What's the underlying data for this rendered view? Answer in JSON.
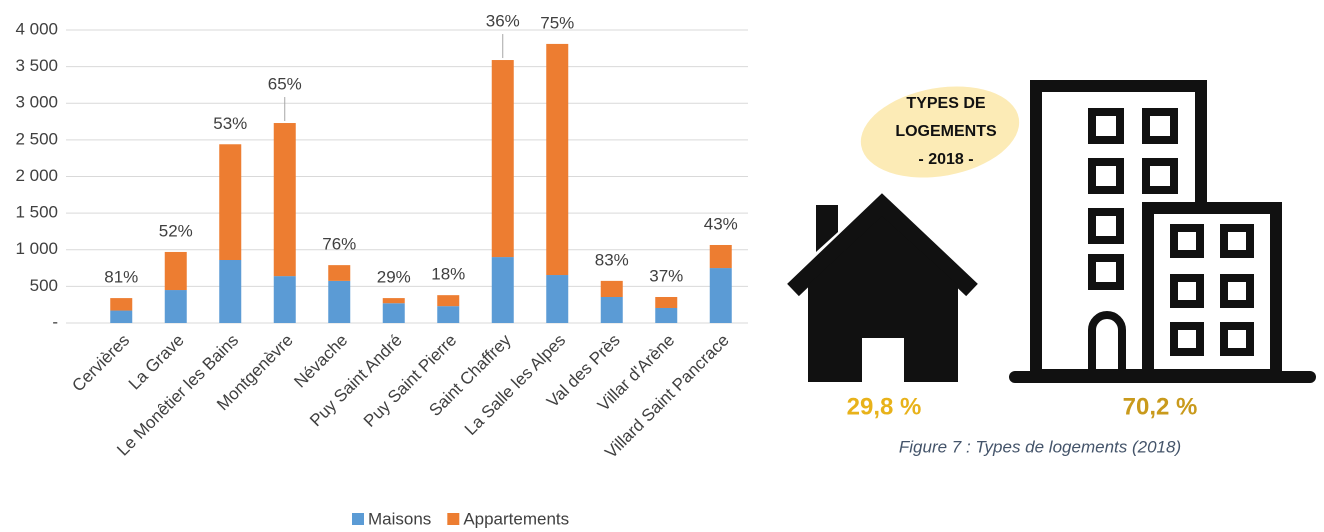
{
  "chart_data": {
    "type": "stacked_bar",
    "categories": [
      "Cervières",
      "La Grave",
      "Le Monêtier les Bains",
      "Montgenèvre",
      "Névache",
      "Puy Saint André",
      "Puy Saint Pierre",
      "Saint Chaffrey",
      "La Salle les Alpes",
      "Val des Près",
      "Villar d'Arène",
      "Villard Saint Pancrace"
    ],
    "series": [
      {
        "name": "Maisons",
        "color": "#5b9bd5",
        "values": [
          170,
          450,
          860,
          640,
          575,
          270,
          230,
          900,
          655,
          355,
          205,
          750
        ]
      },
      {
        "name": "Appartements",
        "color": "#ed7d31",
        "values": [
          170,
          520,
          1580,
          2090,
          215,
          70,
          150,
          2690,
          3155,
          220,
          150,
          315
        ]
      }
    ],
    "top_labels": [
      "81%",
      "52%",
      "53%",
      "65%",
      "76%",
      "29%",
      "18%",
      "36%",
      "75%",
      "83%",
      "37%",
      "43%"
    ],
    "ylim": [
      0,
      4000
    ],
    "yticks": [
      {
        "value": 0,
        "label": "-"
      },
      500,
      {
        "value": 1000,
        "label": "1 000"
      },
      {
        "value": 1500,
        "label": "1 500"
      },
      {
        "value": 2000,
        "label": "2 000"
      },
      {
        "value": 2500,
        "label": "2 500"
      },
      {
        "value": 3000,
        "label": "3 000"
      },
      {
        "value": 3500,
        "label": "3 500"
      },
      {
        "value": 4000,
        "label": "4 000"
      }
    ],
    "grid": true,
    "legend": "bottom"
  },
  "infographic": {
    "title_lines": [
      "TYPES DE",
      "LOGEMENTS",
      "- 2018 -"
    ],
    "house_share": "29,8 %",
    "building_share": "70,2 %",
    "caption": "Figure 7 : Types de logements (2018)"
  }
}
